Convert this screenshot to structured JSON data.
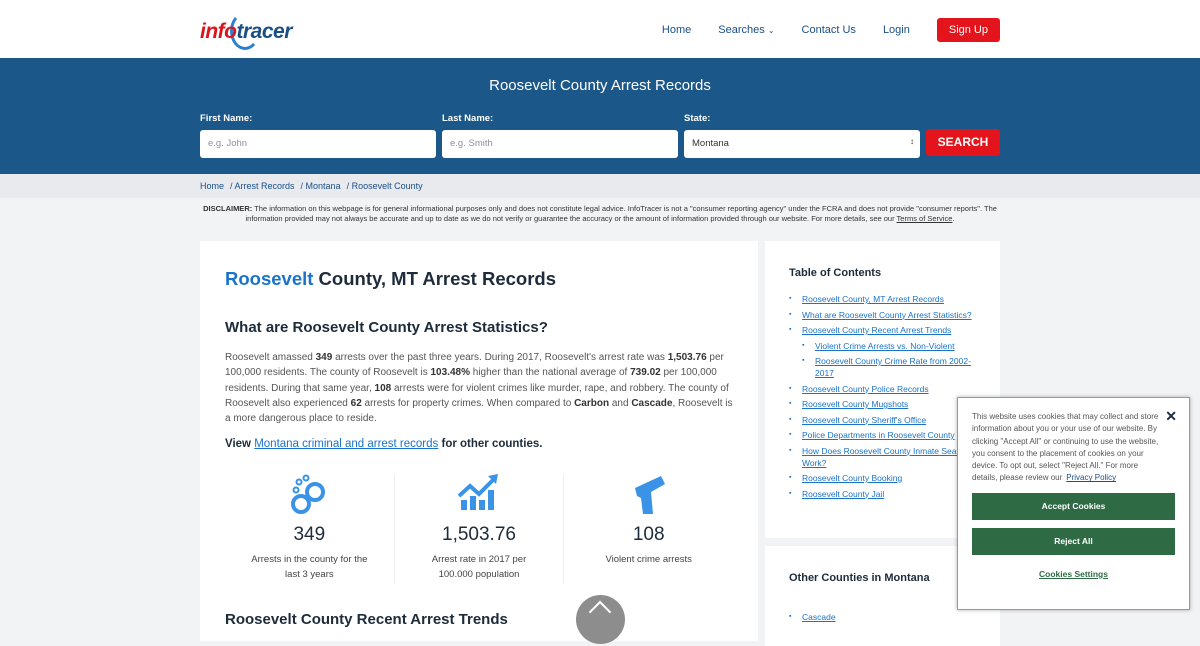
{
  "header": {
    "logo_text_a": "info",
    "logo_text_b": "tracer",
    "nav": [
      "Home",
      "Searches",
      "Contact Us",
      "Login"
    ],
    "signup": "Sign Up"
  },
  "hero": {
    "title": "Roosevelt County Arrest Records",
    "first_label": "First Name:",
    "first_placeholder": "e.g. John",
    "last_label": "Last Name:",
    "last_placeholder": "e.g. Smith",
    "state_label": "State:",
    "state_value": "Montana",
    "search": "SEARCH"
  },
  "breadcrumb": [
    "Home",
    "/ Arrest Records",
    "/ Montana",
    "/ Roosevelt County"
  ],
  "disclaimer": {
    "label": "DISCLAIMER:",
    "text": " The information on this webpage is for general informational purposes only and does not constitute legal advice. InfoTracer is not a \"consumer reporting agency\" under the FCRA and does not provide \"consumer reports\". The information provided may not always be accurate and up to date as we do not verify or guarantee the accuracy or the amount of information provided through our website. For more details, see our ",
    "link": "Terms of Service",
    "end": "."
  },
  "main": {
    "title_blue": "Roosevelt",
    "title_rest": " County, MT Arrest Records",
    "h3": "What are Roosevelt County Arrest Statistics?",
    "p": [
      "Roosevelt amassed ",
      "349",
      " arrests over the past three years. During 2017, Roosevelt's arrest rate was ",
      "1,503.76",
      " per 100,000 residents. The county of Roosevelt is ",
      "103.48%",
      " higher than the national average of ",
      "739.02",
      " per 100,000 residents. During that same year, ",
      "108",
      " arrests were for violent crimes like murder, rape, and robbery. The county of Roosevelt also experienced ",
      "62",
      " arrests for property crimes. When compared to ",
      "Carbon",
      " and ",
      "Cascade",
      ", Roosevelt is a more dangerous place to reside."
    ],
    "view_pre": "View ",
    "view_link": "Montana criminal and arrest records",
    "view_post": " for other counties.",
    "stats": [
      {
        "icon": "handcuffs-icon",
        "num": "349",
        "label": "Arrests in the county for the last 3 years"
      },
      {
        "icon": "chart-up-icon",
        "num": "1,503.76",
        "label": "Arrest rate in 2017 per 100.000 population"
      },
      {
        "icon": "gun-icon",
        "num": "108",
        "label": "Violent crime arrests"
      }
    ],
    "next_heading": "Roosevelt County Recent Arrest Trends"
  },
  "toc": {
    "title": "Table of Contents",
    "items": [
      {
        "t": "Roosevelt County, MT Arrest Records"
      },
      {
        "t": "What are Roosevelt County Arrest Statistics?"
      },
      {
        "t": "Roosevelt County Recent Arrest Trends"
      },
      {
        "t": "Violent Crime Arrests vs. Non-Violent",
        "sub": true
      },
      {
        "t": "Roosevelt County Crime Rate from 2002-2017",
        "sub": true
      },
      {
        "t": "Roosevelt County Police Records"
      },
      {
        "t": "Roosevelt County Mugshots"
      },
      {
        "t": "Roosevelt County Sheriff's Office"
      },
      {
        "t": "Police Departments in Roosevelt County"
      },
      {
        "t": "How Does Roosevelt County Inmate Search Work?"
      },
      {
        "t": "Roosevelt County Booking"
      },
      {
        "t": "Roosevelt County Jail"
      }
    ]
  },
  "other": {
    "title": "Other Counties in Montana",
    "items": [
      "Cascade"
    ]
  },
  "cookie": {
    "text": "This website uses cookies that may collect and store information about you or your use of our website. By clicking \"Accept All\" or continuing to use the website, you consent to the placement of cookies on your device. To opt out, select \"Reject All.\" For more details, please review our",
    "link": "Privacy Policy",
    "accept": "Accept Cookies",
    "reject": "Reject All",
    "settings": "Cookies Settings"
  },
  "colors": {
    "brand_blue": "#1b5788",
    "accent_red": "#e3141b",
    "link": "#1a73c9",
    "cookie_green": "#2e6b45"
  }
}
